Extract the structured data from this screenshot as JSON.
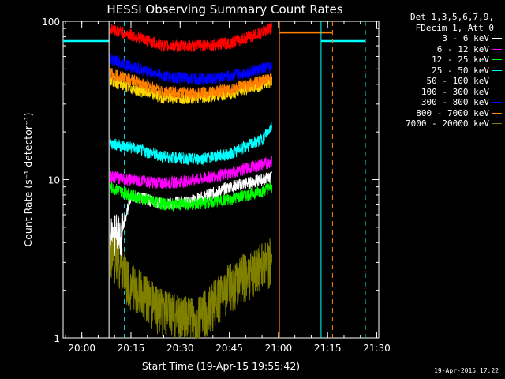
{
  "title": "HESSI Observing Summary Count Rates",
  "footer_stamp": "19-Apr-2015 17:22",
  "legend": {
    "header": [
      "Det 1,3,5,6,7,9,",
      "FDecim 1, Att 0"
    ],
    "entries": [
      {
        "label": "3 - 6 keV",
        "color": "#ffffff"
      },
      {
        "label": "6 - 12 keV",
        "color": "#ff00ff"
      },
      {
        "label": "12 - 25 keV",
        "color": "#00ff00"
      },
      {
        "label": "25 - 50 keV",
        "color": "#00ffff"
      },
      {
        "label": "50 - 100 keV",
        "color": "#ffd700"
      },
      {
        "label": "100 - 300 keV",
        "color": "#ff0000"
      },
      {
        "label": "300 - 800 keV",
        "color": "#0000ff"
      },
      {
        "label": "800 - 7000 keV",
        "color": "#ff8000"
      },
      {
        "label": "7000 - 20000 keV",
        "color": "#808000"
      }
    ]
  },
  "chart_data": {
    "type": "line",
    "title": "HESSI Observing Summary Count Rates",
    "xlabel": "Start Time (19-Apr-15 19:55:42)",
    "ylabel": "Count Rate (s⁻¹ detector⁻¹)",
    "y_scale": "log",
    "ylim": [
      1,
      100
    ],
    "xlim_minutes": [
      -5.7,
      35.3
    ],
    "x_tick_labels": [
      "20:00",
      "20:15",
      "20:30",
      "20:45",
      "21:00",
      "21:15",
      "21:30"
    ],
    "x_tick_minutes": [
      0,
      15,
      30,
      45,
      60,
      75,
      90
    ],
    "y_tick_labels": [
      "1",
      "10",
      "100"
    ],
    "y_tick_values": [
      1,
      10,
      100
    ],
    "series": [
      {
        "name": "3 - 6 keV",
        "color": "#ffffff",
        "segments": [
          [
            8.6,
            4.5
          ],
          [
            12,
            4.5
          ],
          [
            15,
            8
          ],
          [
            25,
            7
          ],
          [
            35,
            7.5
          ],
          [
            45,
            9
          ],
          [
            55,
            10
          ],
          [
            58,
            10.5
          ]
        ]
      },
      {
        "name": "6 - 12 keV",
        "color": "#ff00ff",
        "segments": [
          [
            8.6,
            10.5
          ],
          [
            15,
            10
          ],
          [
            25,
            9.5
          ],
          [
            35,
            10
          ],
          [
            45,
            11
          ],
          [
            55,
            12.5
          ],
          [
            58,
            13
          ]
        ]
      },
      {
        "name": "12 - 25 keV",
        "color": "#00ff00",
        "segments": [
          [
            8.6,
            9
          ],
          [
            15,
            8
          ],
          [
            25,
            7
          ],
          [
            35,
            7
          ],
          [
            45,
            7.5
          ],
          [
            55,
            8.5
          ],
          [
            58,
            9
          ]
        ]
      },
      {
        "name": "25 - 50 keV",
        "color": "#00ffff",
        "segments": [
          [
            8.6,
            17
          ],
          [
            15,
            16
          ],
          [
            25,
            14
          ],
          [
            35,
            13.5
          ],
          [
            45,
            14.5
          ],
          [
            55,
            18
          ],
          [
            58,
            22
          ]
        ]
      },
      {
        "name": "50 - 100 keV",
        "color": "#ffd700",
        "segments": [
          [
            8.6,
            43
          ],
          [
            15,
            38
          ],
          [
            25,
            33
          ],
          [
            35,
            33
          ],
          [
            45,
            35
          ],
          [
            55,
            40
          ],
          [
            58,
            42
          ]
        ]
      },
      {
        "name": "100 - 300 keV",
        "color": "#ff0000",
        "segments": [
          [
            8.6,
            90
          ],
          [
            15,
            82
          ],
          [
            25,
            70
          ],
          [
            35,
            70
          ],
          [
            45,
            73
          ],
          [
            55,
            85
          ],
          [
            58,
            92
          ]
        ]
      },
      {
        "name": "300 - 800 keV",
        "color": "#0000ff",
        "segments": [
          [
            8.6,
            58
          ],
          [
            15,
            52
          ],
          [
            25,
            45
          ],
          [
            35,
            43
          ],
          [
            45,
            45
          ],
          [
            55,
            50
          ],
          [
            58,
            52
          ]
        ]
      },
      {
        "name": "800 - 7000 keV",
        "color": "#ff8000",
        "segments": [
          [
            8.6,
            47
          ],
          [
            15,
            43
          ],
          [
            25,
            36
          ],
          [
            35,
            35
          ],
          [
            45,
            37
          ],
          [
            55,
            42
          ],
          [
            58,
            44
          ]
        ]
      },
      {
        "name": "7000 - 20000 keV",
        "color": "#808000",
        "segments": [
          [
            8.6,
            3.8
          ],
          [
            15,
            2.2
          ],
          [
            25,
            1.5
          ],
          [
            35,
            1.3
          ],
          [
            45,
            2.2
          ],
          [
            55,
            3
          ],
          [
            58,
            3.2
          ]
        ]
      }
    ],
    "attenuator_lines": [
      {
        "color": "#00ffff",
        "minutes": [
          -5.7,
          8.3
        ],
        "value": 75
      },
      {
        "color": "#ff8000",
        "minutes": [
          60.3,
          76.5
        ],
        "value": 85
      },
      {
        "color": "#00ffff",
        "minutes": [
          73.0,
          86.5
        ],
        "value": 75
      }
    ],
    "vertical_markers": [
      {
        "color": "#00ffff",
        "style": "dashed",
        "minute": 13.0
      },
      {
        "color": "#00ffff",
        "style": "solid",
        "minute": 73.0
      },
      {
        "color": "#ff8000",
        "style": "dashed",
        "minute": 76.5
      },
      {
        "color": "#00ffff",
        "style": "dashed",
        "minute": 86.5
      },
      {
        "color": "#ffffff",
        "style": "solid",
        "minute": 8.3
      },
      {
        "color": "#ff8000",
        "style": "solid",
        "minute": 60.3
      }
    ]
  }
}
